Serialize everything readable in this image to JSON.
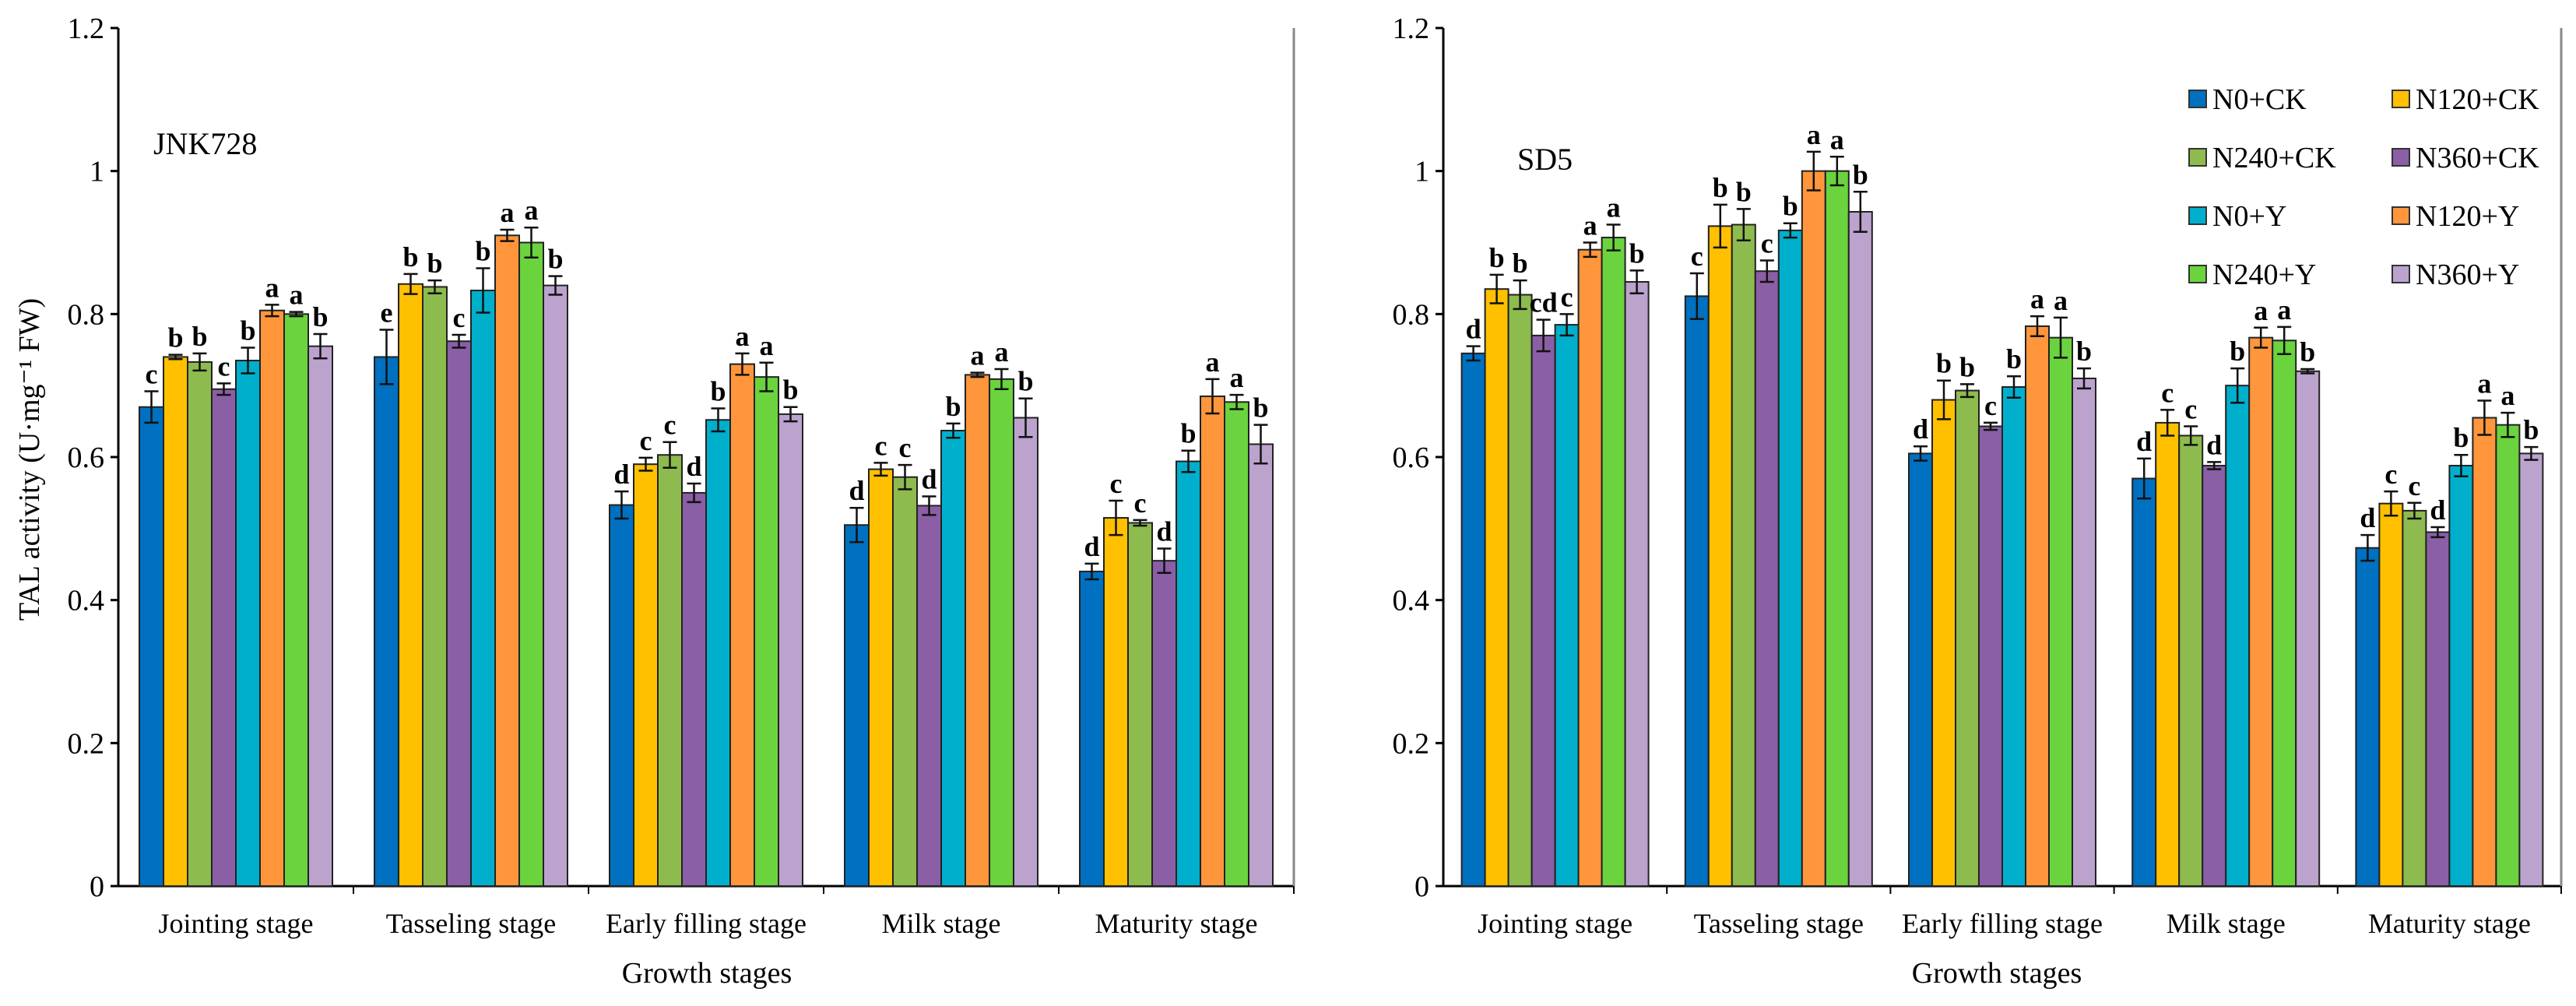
{
  "chart_data": {
    "type": "bar",
    "ylabel": "TAL activity (U·mg⁻¹ FW)",
    "xlabel": "Growth stages",
    "ylim": [
      0,
      1.2
    ],
    "yticks": [
      "0",
      "0.2",
      "0.4",
      "0.6",
      "0.8",
      "1",
      "1.2"
    ],
    "ytick_values": [
      0,
      0.2,
      0.4,
      0.6,
      0.8,
      1.0,
      1.2
    ],
    "categories": [
      "Jointing stage",
      "Tasseling stage",
      "Early filling stage",
      "Milk stage",
      "Maturity stage"
    ],
    "legend": {
      "placement": "top-right of right panel",
      "entries": [
        "N0+CK",
        "N120+CK",
        "N240+CK",
        "N360+CK",
        "N0+Y",
        "N120+Y",
        "N240+Y",
        "N360+Y"
      ]
    },
    "colors": [
      "#0070C0",
      "#FFC000",
      "#8DBB4E",
      "#8A5FA5",
      "#00AFCB",
      "#FF963C",
      "#6AD33E",
      "#BBA3CD"
    ],
    "panels": [
      {
        "title": "JNK728",
        "values": [
          [
            0.67,
            0.74,
            0.733,
            0.695,
            0.735,
            0.805,
            0.8,
            0.755
          ],
          [
            0.74,
            0.842,
            0.838,
            0.762,
            0.833,
            0.91,
            0.9,
            0.84
          ],
          [
            0.533,
            0.59,
            0.603,
            0.55,
            0.652,
            0.73,
            0.712,
            0.66
          ],
          [
            0.505,
            0.583,
            0.572,
            0.532,
            0.637,
            0.715,
            0.709,
            0.655
          ],
          [
            0.44,
            0.515,
            0.508,
            0.455,
            0.594,
            0.685,
            0.677,
            0.618
          ]
        ],
        "errors": [
          [
            0.022,
            0.003,
            0.012,
            0.008,
            0.018,
            0.008,
            0.003,
            0.017
          ],
          [
            0.038,
            0.014,
            0.009,
            0.009,
            0.031,
            0.008,
            0.021,
            0.013
          ],
          [
            0.019,
            0.009,
            0.018,
            0.013,
            0.016,
            0.015,
            0.02,
            0.01
          ],
          [
            0.024,
            0.009,
            0.017,
            0.013,
            0.01,
            0.003,
            0.014,
            0.027
          ],
          [
            0.011,
            0.024,
            0.004,
            0.017,
            0.015,
            0.024,
            0.01,
            0.027
          ]
        ],
        "letters": [
          [
            "c",
            "b",
            "b",
            "c",
            "b",
            "a",
            "a",
            "b"
          ],
          [
            "e",
            "b",
            "b",
            "c",
            "b",
            "a",
            "a",
            "b"
          ],
          [
            "d",
            "c",
            "c",
            "d",
            "b",
            "a",
            "a",
            "b"
          ],
          [
            "d",
            "c",
            "c",
            "d",
            "b",
            "a",
            "a",
            "b"
          ],
          [
            "d",
            "c",
            "c",
            "d",
            "b",
            "a",
            "a",
            "b"
          ]
        ]
      },
      {
        "title": "SD5",
        "values": [
          [
            0.745,
            0.835,
            0.827,
            0.77,
            0.785,
            0.89,
            0.907,
            0.845
          ],
          [
            0.825,
            0.923,
            0.925,
            0.86,
            0.917,
            1.0,
            1.0,
            0.943
          ],
          [
            0.605,
            0.68,
            0.693,
            0.643,
            0.698,
            0.783,
            0.767,
            0.71
          ],
          [
            0.57,
            0.648,
            0.63,
            0.588,
            0.7,
            0.767,
            0.763,
            0.72
          ],
          [
            0.473,
            0.535,
            0.525,
            0.495,
            0.588,
            0.655,
            0.645,
            0.605
          ]
        ],
        "errors": [
          [
            0.01,
            0.02,
            0.02,
            0.022,
            0.015,
            0.01,
            0.018,
            0.016
          ],
          [
            0.032,
            0.03,
            0.022,
            0.015,
            0.01,
            0.027,
            0.02,
            0.028
          ],
          [
            0.01,
            0.027,
            0.009,
            0.005,
            0.015,
            0.014,
            0.028,
            0.014
          ],
          [
            0.028,
            0.018,
            0.013,
            0.005,
            0.024,
            0.014,
            0.019,
            0.003
          ],
          [
            0.018,
            0.017,
            0.011,
            0.007,
            0.015,
            0.024,
            0.017,
            0.009
          ]
        ],
        "letters": [
          [
            "d",
            "b",
            "b",
            "cd",
            "c",
            "a",
            "a",
            "b"
          ],
          [
            "c",
            "b",
            "b",
            "c",
            "b",
            "a",
            "a",
            "b"
          ],
          [
            "d",
            "b",
            "b",
            "c",
            "b",
            "a",
            "a",
            "b"
          ],
          [
            "d",
            "c",
            "c",
            "d",
            "b",
            "a",
            "a",
            "b"
          ],
          [
            "d",
            "c",
            "c",
            "d",
            "b",
            "a",
            "a",
            "b"
          ]
        ]
      }
    ]
  }
}
